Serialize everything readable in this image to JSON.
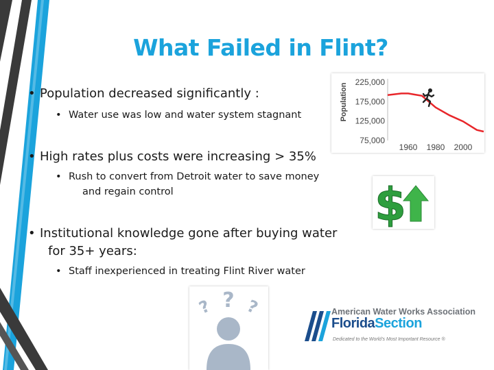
{
  "slide": {
    "title": "What Failed in Flint?",
    "bullets": [
      {
        "level": 1,
        "text": "Population decreased significantly :"
      },
      {
        "level": 2,
        "text": "Water use was low and water system stagnant"
      },
      {
        "level": 1,
        "text": "High rates plus costs were increasing  > 35%"
      },
      {
        "level": 2,
        "text": "Rush to convert from Detroit water to save money"
      },
      {
        "level": 2,
        "text": "and regain control"
      },
      {
        "level": 1,
        "text": "Institutional knowledge gone after buying water"
      },
      {
        "level": 1,
        "text": "for 35+ years:"
      },
      {
        "level": 2,
        "text": "Staff inexperienced in treating Flint River water"
      }
    ],
    "bullet_glyph": "•"
  },
  "chart_data": {
    "type": "line",
    "ylabel": "Population",
    "yticks": [
      "225,000",
      "175,000",
      "125,000",
      "75,000"
    ],
    "ylim": [
      75000,
      225000
    ],
    "xticks": [
      "1960",
      "1980",
      "2000"
    ],
    "xlim": [
      1945,
      2015
    ],
    "series": [
      {
        "x": [
          1945,
          1955,
          1960,
          1965,
          1970,
          1980,
          1990,
          2000,
          2010,
          2015
        ],
        "y": [
          192000,
          196000,
          196000,
          193000,
          190000,
          160000,
          140000,
          124000,
          102000,
          98000
        ]
      }
    ],
    "line_color": "#e8262a",
    "icon": "running-person-icon"
  },
  "images": {
    "money": {
      "icon": "dollar-up-arrow-icon",
      "dollar_color": "#2e9e3e",
      "arrow_color": "#3fb44a"
    },
    "person": {
      "icon": "confused-person-icon",
      "color": "#a9b7c8"
    }
  },
  "logo": {
    "line1": "American Water Works Association",
    "line2a": "Florida",
    "line2b": "Section",
    "line3": "Dedicated to the World's Most Important Resource ®",
    "color_primary": "#1b4d8c",
    "color_accent": "#1ba3dc"
  },
  "theme": {
    "accent": "#1ba3dc",
    "dark": "#3a3a3a"
  }
}
